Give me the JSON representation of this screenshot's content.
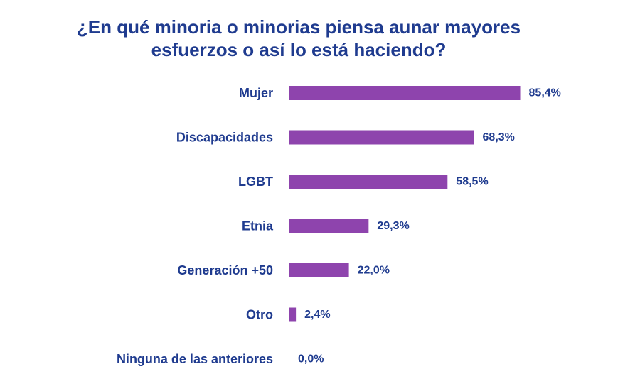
{
  "chart_data": {
    "type": "bar",
    "orientation": "horizontal",
    "title": "¿En qué minoria o minorias piensa aunar mayores\nesfuerzos o así lo está haciendo?",
    "categories": [
      "Mujer",
      "Discapacidades",
      "LGBT",
      "Etnia",
      "Generación +50",
      "Otro",
      "Ninguna de las anteriores"
    ],
    "values": [
      85.4,
      68.3,
      58.5,
      29.3,
      22.0,
      2.4,
      0.0
    ],
    "value_labels": [
      "85,4%",
      "68,3%",
      "58,5%",
      "29,3%",
      "22,0%",
      "2,4%",
      "0,0%"
    ],
    "xlim": [
      0,
      100
    ],
    "grid": false,
    "legend": "none",
    "colors": {
      "bar": "#8e44ad",
      "title": "#1f3b8f",
      "labels": "#1f3b8f"
    }
  }
}
